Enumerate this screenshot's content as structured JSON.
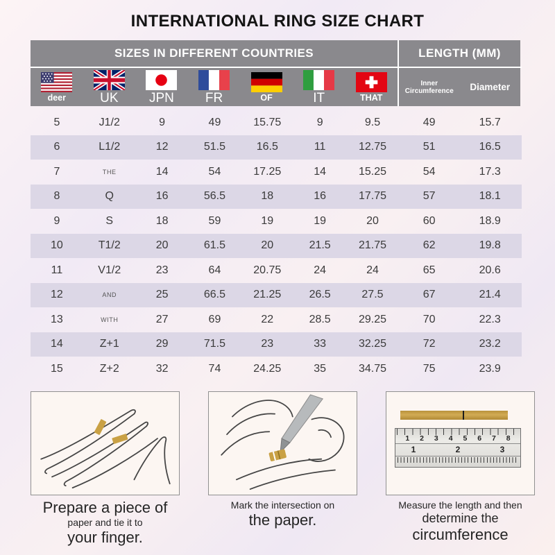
{
  "title": "INTERNATIONAL RING SIZE CHART",
  "chart_data": {
    "type": "table",
    "title": "INTERNATIONAL RING SIZE CHART",
    "column_groups": {
      "left": "SIZES IN DIFFERENT COUNTRIES",
      "right": "LENGTH (MM)"
    },
    "country_columns": [
      {
        "flag": "usa-flag",
        "label": "deer"
      },
      {
        "flag": "uk-flag",
        "label": "UK"
      },
      {
        "flag": "japan-flag",
        "label": "JPN"
      },
      {
        "flag": "france-flag",
        "label": "FR"
      },
      {
        "flag": "germany-flag",
        "label": "OF"
      },
      {
        "flag": "italy-flag",
        "label": "IT"
      },
      {
        "flag": "switzerland-flag",
        "label": "THAT"
      }
    ],
    "length_columns": [
      "Inner Circumference",
      "Diameter"
    ],
    "rows": [
      [
        "5",
        "J1/2",
        "9",
        "49",
        "15.75",
        "9",
        "9.5",
        "49",
        "15.7"
      ],
      [
        "6",
        "L1/2",
        "12",
        "51.5",
        "16.5",
        "11",
        "12.75",
        "51",
        "16.5"
      ],
      [
        "7",
        "THE",
        "14",
        "54",
        "17.25",
        "14",
        "15.25",
        "54",
        "17.3"
      ],
      [
        "8",
        "Q",
        "16",
        "56.5",
        "18",
        "16",
        "17.75",
        "57",
        "18.1"
      ],
      [
        "9",
        "S",
        "18",
        "59",
        "19",
        "19",
        "20",
        "60",
        "18.9"
      ],
      [
        "10",
        "T1/2",
        "20",
        "61.5",
        "20",
        "21.5",
        "21.75",
        "62",
        "19.8"
      ],
      [
        "11",
        "V1/2",
        "23",
        "64",
        "20.75",
        "24",
        "24",
        "65",
        "20.6"
      ],
      [
        "12",
        "AND",
        "25",
        "66.5",
        "21.25",
        "26.5",
        "27.5",
        "67",
        "21.4"
      ],
      [
        "13",
        "WITH",
        "27",
        "69",
        "22",
        "28.5",
        "29.25",
        "70",
        "22.3"
      ],
      [
        "14",
        "Z+1",
        "29",
        "71.5",
        "23",
        "33",
        "32.25",
        "72",
        "23.2"
      ],
      [
        "15",
        "Z+2",
        "32",
        "74",
        "24.25",
        "35",
        "34.75",
        "75",
        "23.9"
      ]
    ],
    "small_cell_values": [
      "THE",
      "AND",
      "WITH"
    ]
  },
  "steps": [
    {
      "caption": {
        "line1": "Prepare a piece of",
        "line2": "paper and tie it to",
        "line3": "your finger."
      }
    },
    {
      "caption": {
        "line1": "Mark the intersection on",
        "line2": "the paper."
      }
    },
    {
      "caption": {
        "line1": "Measure the length and then",
        "line2": "determine the",
        "line3": "circumference"
      },
      "ruler": {
        "top_numbers": "1 2 3 4 5 6 7 8",
        "bottom_numbers": "1 2 3"
      }
    }
  ],
  "colors": {
    "header_gray": "#8a898d",
    "row_stripe": "#dcd7e6",
    "gold_strip": "#c9a145",
    "background_pink": "#fbf0ee",
    "background_lavender": "#efe8f3"
  }
}
